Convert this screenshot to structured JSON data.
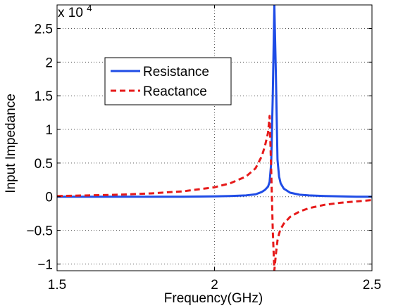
{
  "chart_data": {
    "type": "line",
    "xlabel": "Frequency(GHz)",
    "ylabel": "Input Impedance",
    "y_multiplier": "x 10",
    "y_multiplier_exponent": "4",
    "xlim": [
      1.5,
      2.5
    ],
    "ylim": [
      -1.1,
      2.85
    ],
    "x_ticks": [
      1.5,
      2,
      2.5
    ],
    "x_tick_labels": [
      "1.5",
      "2",
      "2.5"
    ],
    "y_ticks": [
      -1,
      -0.5,
      0,
      0.5,
      1,
      1.5,
      2,
      2.5
    ],
    "y_tick_labels": [
      "−1",
      "−0.5",
      "0",
      "0.5",
      "1",
      "1.5",
      "2",
      "2.5"
    ],
    "grid": true,
    "legend_position": "upper-left",
    "series": [
      {
        "name": "Resistance",
        "color": "#1f4ce6",
        "style": "solid",
        "x": [
          1.5,
          1.6,
          1.7,
          1.8,
          1.9,
          2.0,
          2.05,
          2.1,
          2.13,
          2.15,
          2.16,
          2.17,
          2.175,
          2.18,
          2.185,
          2.19,
          2.195,
          2.2,
          2.205,
          2.21,
          2.22,
          2.24,
          2.27,
          2.3,
          2.35,
          2.4,
          2.45,
          2.5
        ],
        "y": [
          0.0,
          0.0,
          0.0,
          0.0,
          0.0,
          0.005,
          0.01,
          0.02,
          0.035,
          0.07,
          0.1,
          0.15,
          0.22,
          0.5,
          1.5,
          2.85,
          1.8,
          0.55,
          0.3,
          0.2,
          0.12,
          0.06,
          0.03,
          0.02,
          0.01,
          0.005,
          0.0,
          0.0
        ]
      },
      {
        "name": "Reactance",
        "color": "#e61a1a",
        "style": "dashed",
        "x": [
          1.5,
          1.6,
          1.7,
          1.8,
          1.9,
          2.0,
          2.05,
          2.1,
          2.13,
          2.15,
          2.16,
          2.17,
          2.175,
          2.18,
          2.185,
          2.19,
          2.195,
          2.2,
          2.205,
          2.21,
          2.22,
          2.24,
          2.27,
          2.3,
          2.35,
          2.4,
          2.45,
          2.5
        ],
        "y": [
          0.01,
          0.02,
          0.03,
          0.05,
          0.08,
          0.14,
          0.2,
          0.3,
          0.42,
          0.6,
          0.75,
          0.95,
          1.2,
          0.4,
          -0.5,
          -1.1,
          -0.85,
          -0.65,
          -0.55,
          -0.48,
          -0.4,
          -0.3,
          -0.22,
          -0.17,
          -0.12,
          -0.09,
          -0.07,
          -0.05
        ]
      }
    ]
  }
}
